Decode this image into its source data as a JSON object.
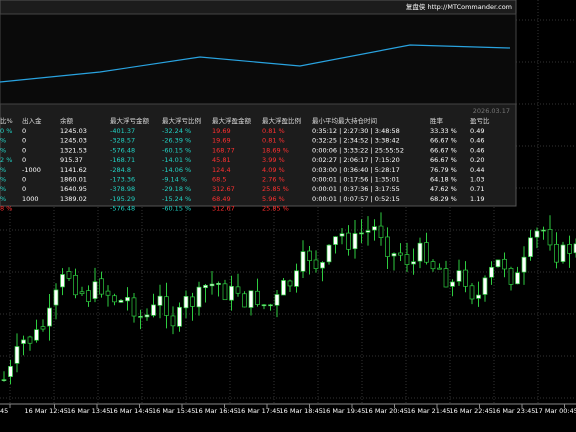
{
  "panel": {
    "brand": "复盘侠 http://MTCommander.com",
    "date": "2026.03.17",
    "table": {
      "headers": [
        "比%",
        "出入金",
        "余额",
        "最大浮亏金额",
        "最大浮亏比例",
        "最大浮盈金额",
        "最大浮盈比例",
        "最小平均最大持仓时间",
        "胜率",
        "盈亏比"
      ],
      "column_colors": [
        "#22d3c5",
        "#ffffff",
        "#ffffff",
        "#22d3c5",
        "#22d3c5",
        "#ff3030",
        "#ff3030",
        "#ffffff",
        "#ffffff",
        "#ffffff"
      ],
      "rows": [
        [
          "0 %",
          "0",
          "1245.03",
          "-401.37",
          "-32.24 %",
          "19.69",
          "0.81 %",
          "0:35:12 | 2:27:30 | 3:48:58",
          "33.33 %",
          "0.49"
        ],
        [
          "%",
          "0",
          "1245.03",
          "-328.57",
          "-26.39 %",
          "19.69",
          "0.81 %",
          "0:32:25 | 2:34:52 | 3:38:42",
          "66.67 %",
          "0.46"
        ],
        [
          "%",
          "0",
          "1321.53",
          "-576.48",
          "-60.15 %",
          "168.77",
          "18.69 %",
          "0:00:06 | 3:33:22 | 25:55:52",
          "66.67 %",
          "0.46"
        ],
        [
          "2 %",
          "0",
          "915.37",
          "-168.71",
          "-14.01 %",
          "45.81",
          "3.99 %",
          "0:02:27 | 2:06:17 | 7:15:20",
          "66.67 %",
          "0.20"
        ],
        [
          "%",
          "-1000",
          "1141.62",
          "-284.8",
          "-14.06 %",
          "124.4",
          "4.09 %",
          "0:03:00 | 0:36:40 | 5:28:17",
          "76.79 %",
          "0.44"
        ],
        [
          "%",
          "0",
          "1860.01",
          "-173.36",
          "-9.14 %",
          "68.5",
          "2.76 %",
          "0:00:01 | 0:17:56 | 1:35:01",
          "64.18 %",
          "1.03"
        ],
        [
          "%",
          "0",
          "1640.95",
          "-378.98",
          "-29.18 %",
          "312.67",
          "25.85 %",
          "0:00:01 | 0:37:36 | 3:17:55",
          "47.62 %",
          "0.71"
        ],
        [
          "%",
          "1000",
          "1389.02",
          "-195.29",
          "-15.24 %",
          "68.49",
          "5.96 %",
          "0:00:01 | 0:07:57 | 0:52:15",
          "68.29 %",
          "1.19"
        ]
      ],
      "total": {
        "first": "8 %",
        "max_loss": "-576.48",
        "max_loss_pct": "-60.15 %",
        "max_profit": "312.67",
        "max_profit_pct": "25.85 %"
      }
    }
  },
  "x_axis": {
    "labels": [
      "45",
      "16 Mar 12:45",
      "16 Mar 13:45",
      "16 Mar 14:45",
      "16 Mar 15:45",
      "16 Mar 16:45",
      "16 Mar 17:45",
      "16 Mar 18:45",
      "16 Mar 19:45",
      "16 Mar 20:45",
      "16 Mar 21:45",
      "16 Mar 22:45",
      "16 Mar 23:45",
      "17 Mar 00:45"
    ]
  }
}
